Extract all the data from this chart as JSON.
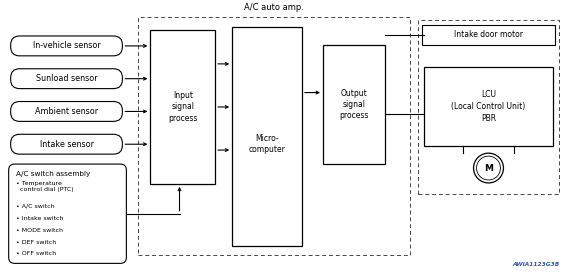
{
  "title": "A/C auto amp.",
  "bg_color": "#ffffff",
  "sensors": [
    "In-vehicle sensor",
    "Sunload sensor",
    "Ambient sensor",
    "Intake sensor"
  ],
  "switch_assembly_title": "A/C switch assembly",
  "switch_assembly_items": [
    "• Temperature\n  control dial (PTC)",
    "• A/C switch",
    "• Intake switch",
    "• MODE switch",
    "• DEF switch",
    "• OFF switch"
  ],
  "input_box_label": "Input\nsignal\nprocess",
  "micro_label": "Micro-\ncomputer",
  "output_box_label": "Output\nsignal\nprocess",
  "lcu_label": "LCU\n(Local Control Unit)\nPBR",
  "intake_door_label": "Intake door motor",
  "motor_label": "M",
  "watermark": "AWIA1123G3B"
}
